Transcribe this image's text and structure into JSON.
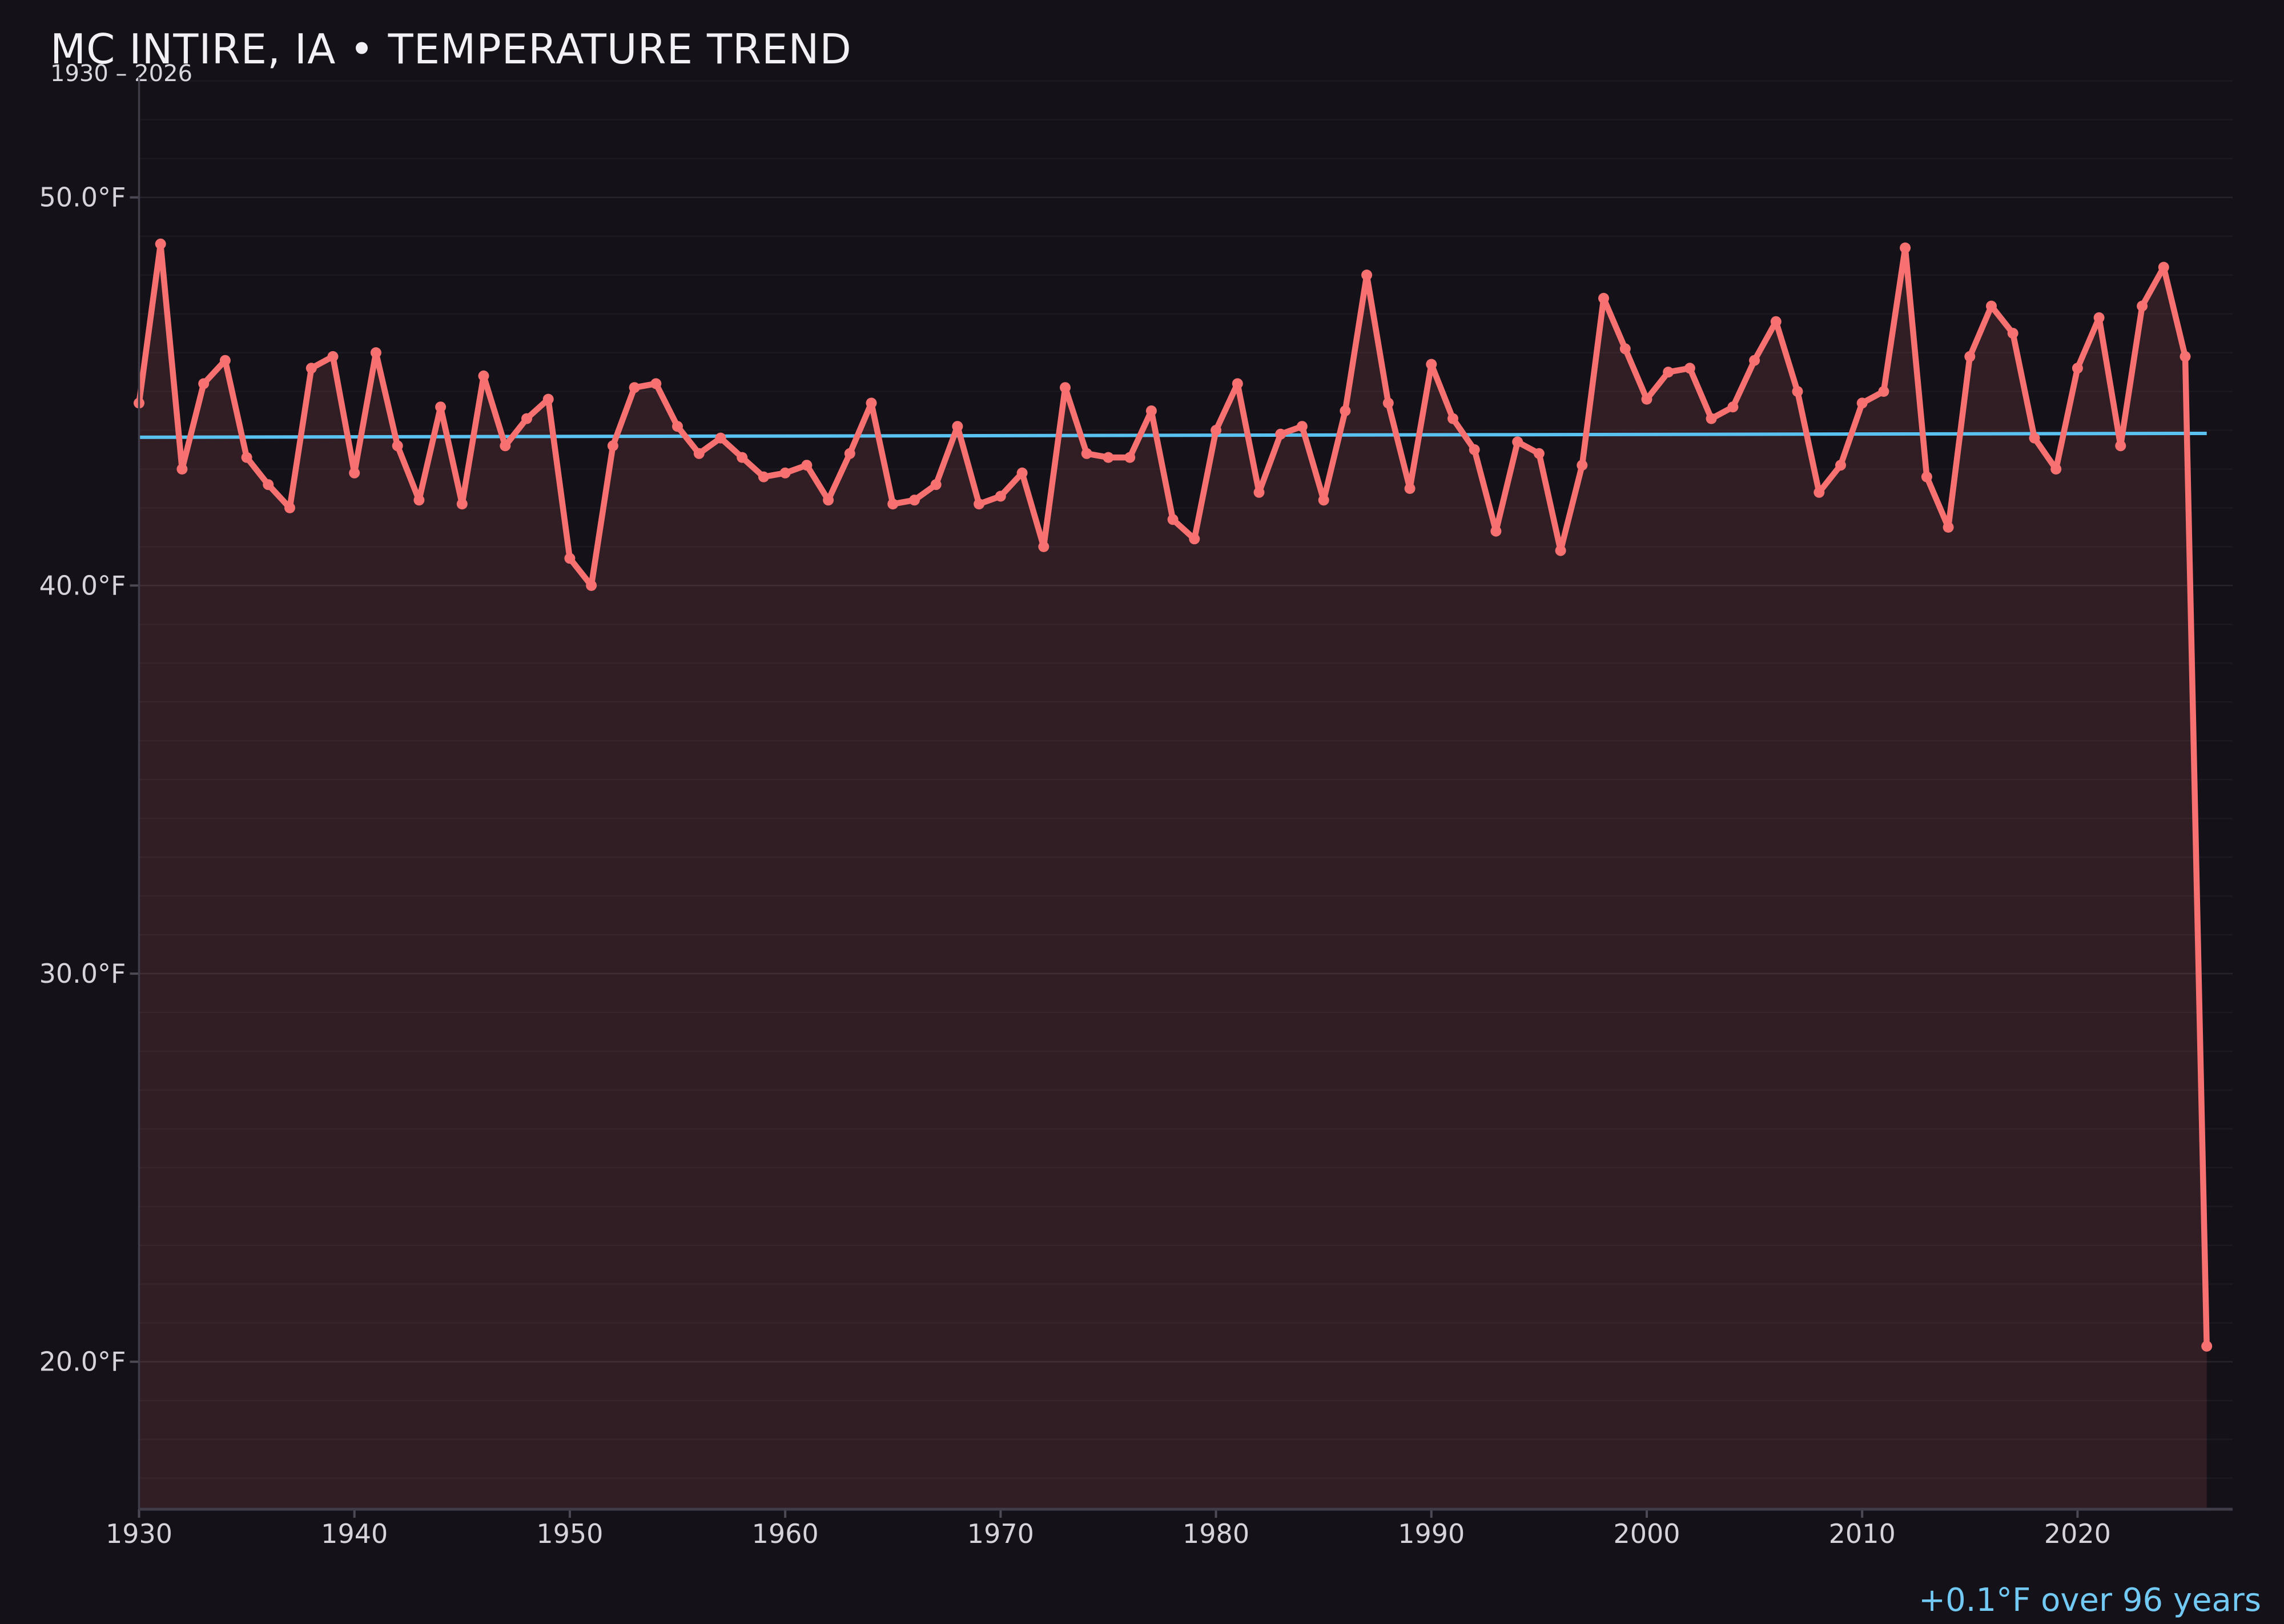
{
  "header": {
    "title": "MC INTIRE, IA • TEMPERATURE TREND",
    "subtitle": "1930 – 2026"
  },
  "annotation": {
    "text": "+0.1°F over 96 years"
  },
  "colors": {
    "background": "#141119",
    "series_line": "#f87171",
    "area_fill": "rgba(248,113,113,0.13)",
    "trend_line": "#5ac2f0",
    "annotation_text": "#72c9f3",
    "title_text": "#f2f0f4",
    "subtitle_text": "#d9d7de",
    "tick_label": "#d6d4da",
    "spine": "#403d49",
    "tick_mark": "#4d4a56",
    "grid_minor": "rgba(255,255,255,0.035)",
    "grid_major": "rgba(255,255,255,0.08)"
  },
  "chart_data": {
    "type": "line",
    "title": "MC INTIRE, IA • TEMPERATURE TREND",
    "subtitle": "1930 – 2026",
    "xlabel": "",
    "ylabel": "",
    "legend": null,
    "grid": {
      "on": true,
      "minor_step_f": 1,
      "minor_range": [
        17,
        53
      ]
    },
    "xlim": [
      1930,
      2027.2
    ],
    "ylim": [
      16.2,
      53.1
    ],
    "x_ticks": [
      {
        "value": 1930,
        "label": "1930"
      },
      {
        "value": 1940,
        "label": "1940"
      },
      {
        "value": 1950,
        "label": "1950"
      },
      {
        "value": 1960,
        "label": "1960"
      },
      {
        "value": 1970,
        "label": "1970"
      },
      {
        "value": 1980,
        "label": "1980"
      },
      {
        "value": 1990,
        "label": "1990"
      },
      {
        "value": 2000,
        "label": "2000"
      },
      {
        "value": 2010,
        "label": "2010"
      },
      {
        "value": 2020,
        "label": "2020"
      }
    ],
    "y_ticks": [
      {
        "value": 50,
        "label": "50.0°F"
      },
      {
        "value": 40,
        "label": "40.0°F"
      },
      {
        "value": 30,
        "label": "30.0°F"
      },
      {
        "value": 20,
        "label": "20.0°F"
      }
    ],
    "years": [
      1930,
      1931,
      1932,
      1933,
      1934,
      1935,
      1936,
      1937,
      1938,
      1939,
      1940,
      1941,
      1942,
      1943,
      1944,
      1945,
      1946,
      1947,
      1948,
      1949,
      1950,
      1951,
      1952,
      1953,
      1954,
      1955,
      1956,
      1957,
      1958,
      1959,
      1960,
      1961,
      1962,
      1963,
      1964,
      1965,
      1966,
      1967,
      1968,
      1969,
      1970,
      1971,
      1972,
      1973,
      1974,
      1975,
      1976,
      1977,
      1978,
      1979,
      1980,
      1981,
      1982,
      1983,
      1984,
      1985,
      1986,
      1987,
      1988,
      1989,
      1990,
      1991,
      1992,
      1993,
      1994,
      1995,
      1996,
      1997,
      1998,
      1999,
      2000,
      2001,
      2002,
      2003,
      2004,
      2005,
      2006,
      2007,
      2008,
      2009,
      2010,
      2011,
      2012,
      2013,
      2014,
      2015,
      2016,
      2017,
      2018,
      2019,
      2020,
      2021,
      2022,
      2023,
      2024,
      2025,
      2026
    ],
    "series": [
      {
        "name": "annual-mean-temperature-f",
        "values": [
          44.7,
          48.8,
          43.0,
          45.2,
          45.8,
          43.3,
          42.6,
          42.0,
          45.6,
          45.9,
          42.9,
          46.0,
          43.6,
          42.2,
          44.6,
          42.1,
          45.4,
          43.6,
          44.3,
          44.8,
          40.7,
          40.0,
          43.6,
          45.1,
          45.2,
          44.1,
          43.4,
          43.8,
          43.3,
          42.8,
          42.9,
          43.1,
          42.2,
          43.4,
          44.7,
          42.1,
          42.2,
          42.6,
          44.1,
          42.1,
          42.3,
          42.9,
          41.0,
          45.1,
          43.4,
          43.3,
          43.3,
          44.5,
          41.7,
          41.2,
          44.0,
          45.2,
          42.4,
          43.9,
          44.1,
          42.2,
          44.5,
          48.0,
          44.7,
          42.5,
          45.7,
          44.3,
          43.5,
          41.4,
          43.7,
          43.4,
          40.9,
          43.1,
          47.4,
          46.1,
          44.8,
          45.5,
          45.6,
          44.3,
          44.6,
          45.8,
          46.8,
          45.0,
          42.4,
          43.1,
          44.7,
          45.0,
          48.7,
          42.8,
          41.5,
          45.9,
          47.2,
          46.5,
          43.8,
          43.0,
          45.6,
          46.9,
          43.6,
          47.2,
          48.2,
          45.9,
          20.4
        ]
      }
    ],
    "trend_line": {
      "start_value": 43.82,
      "end_value": 43.92,
      "label": "+0.1°F over 96 years"
    }
  }
}
